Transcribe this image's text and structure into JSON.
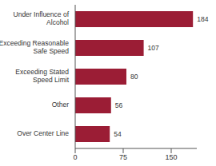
{
  "chart_data": {
    "type": "bar",
    "orientation": "horizontal",
    "categories": [
      "Under Influence of Alcohol",
      "Exceeding Reasonable Safe Speed",
      "Exceeding Stated Speed Limit",
      "Other",
      "Over Center Line"
    ],
    "values": [
      184,
      107,
      80,
      56,
      54
    ],
    "color": "#9b1d35",
    "xlim": [
      0,
      190
    ],
    "xticks": [
      0,
      75,
      150
    ],
    "data_labels": true,
    "grid": false
  }
}
